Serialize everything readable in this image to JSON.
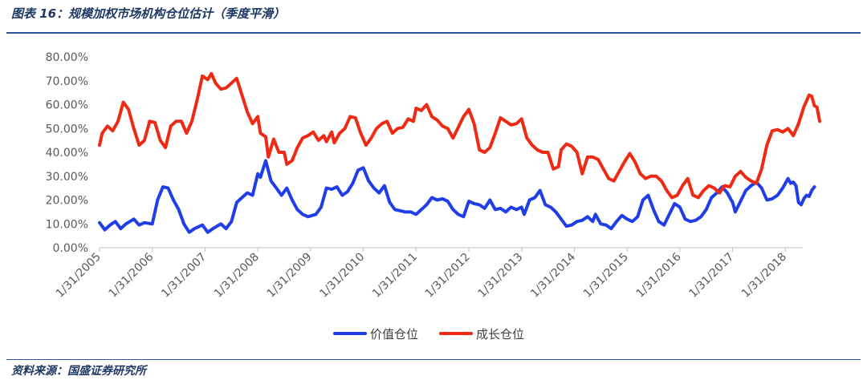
{
  "figure": {
    "title": "图表 16：规模加权市场机构仓位估计（季度平滑）",
    "source": "资料来源：国盛证券研究所"
  },
  "chart_data": {
    "type": "line",
    "ylim": [
      0,
      80
    ],
    "y_ticks": [
      "80.00%",
      "70.00%",
      "60.00%",
      "50.00%",
      "40.00%",
      "30.00%",
      "20.00%",
      "10.00%",
      "0.00%"
    ],
    "x_ticks": [
      "1/31/2005",
      "1/31/2006",
      "1/31/2007",
      "1/31/2008",
      "1/31/2009",
      "1/31/2010",
      "1/31/2011",
      "1/31/2012",
      "1/31/2013",
      "1/31/2014",
      "1/31/2015",
      "1/31/2016",
      "1/31/2017",
      "1/31/2018"
    ],
    "x_range": [
      2005.0,
      2018.33
    ],
    "legend_position": "bottom-center",
    "grid": false,
    "series": [
      {
        "name": "价值仓位",
        "color": "#1f3ee8",
        "points": [
          [
            2005.0,
            10.5
          ],
          [
            2005.1,
            7.5
          ],
          [
            2005.2,
            9.5
          ],
          [
            2005.3,
            11.0
          ],
          [
            2005.4,
            8.0
          ],
          [
            2005.5,
            10.0
          ],
          [
            2005.65,
            12.0
          ],
          [
            2005.75,
            9.5
          ],
          [
            2005.85,
            10.5
          ],
          [
            2006.0,
            10.0
          ],
          [
            2006.1,
            20.0
          ],
          [
            2006.2,
            25.5
          ],
          [
            2006.3,
            25.0
          ],
          [
            2006.4,
            20.0
          ],
          [
            2006.5,
            16.0
          ],
          [
            2006.6,
            10.0
          ],
          [
            2006.7,
            6.5
          ],
          [
            2006.8,
            8.0
          ],
          [
            2006.95,
            9.5
          ],
          [
            2007.05,
            6.5
          ],
          [
            2007.15,
            8.0
          ],
          [
            2007.3,
            10.0
          ],
          [
            2007.4,
            8.0
          ],
          [
            2007.5,
            11.0
          ],
          [
            2007.6,
            19.0
          ],
          [
            2007.7,
            21.0
          ],
          [
            2007.8,
            23.0
          ],
          [
            2007.9,
            22.0
          ],
          [
            2008.0,
            31.0
          ],
          [
            2008.05,
            29.5
          ],
          [
            2008.15,
            36.5
          ],
          [
            2008.25,
            28.0
          ],
          [
            2008.35,
            25.0
          ],
          [
            2008.45,
            22.0
          ],
          [
            2008.55,
            25.0
          ],
          [
            2008.65,
            20.0
          ],
          [
            2008.75,
            16.0
          ],
          [
            2008.85,
            14.0
          ],
          [
            2008.95,
            13.0
          ],
          [
            2009.1,
            14.0
          ],
          [
            2009.2,
            17.0
          ],
          [
            2009.3,
            25.0
          ],
          [
            2009.4,
            24.5
          ],
          [
            2009.5,
            25.5
          ],
          [
            2009.6,
            22.0
          ],
          [
            2009.7,
            23.5
          ],
          [
            2009.8,
            27.0
          ],
          [
            2009.9,
            32.5
          ],
          [
            2010.0,
            33.5
          ],
          [
            2010.1,
            28.0
          ],
          [
            2010.2,
            25.0
          ],
          [
            2010.3,
            23.0
          ],
          [
            2010.4,
            26.0
          ],
          [
            2010.5,
            19.0
          ],
          [
            2010.6,
            16.0
          ],
          [
            2010.7,
            15.5
          ],
          [
            2010.8,
            15.0
          ],
          [
            2010.9,
            15.0
          ],
          [
            2011.0,
            14.0
          ],
          [
            2011.1,
            16.0
          ],
          [
            2011.2,
            18.0
          ],
          [
            2011.3,
            21.0
          ],
          [
            2011.4,
            20.0
          ],
          [
            2011.5,
            20.5
          ],
          [
            2011.6,
            19.5
          ],
          [
            2011.7,
            16.0
          ],
          [
            2011.8,
            14.0
          ],
          [
            2011.9,
            13.0
          ],
          [
            2012.0,
            19.5
          ],
          [
            2012.1,
            18.5
          ],
          [
            2012.2,
            18.0
          ],
          [
            2012.3,
            16.5
          ],
          [
            2012.4,
            20.0
          ],
          [
            2012.5,
            16.0
          ],
          [
            2012.6,
            16.5
          ],
          [
            2012.7,
            15.0
          ],
          [
            2012.8,
            17.0
          ],
          [
            2012.9,
            16.0
          ],
          [
            2013.0,
            17.0
          ],
          [
            2013.05,
            14.0
          ],
          [
            2013.15,
            20.0
          ],
          [
            2013.25,
            21.0
          ],
          [
            2013.35,
            24.0
          ],
          [
            2013.45,
            18.0
          ],
          [
            2013.55,
            17.0
          ],
          [
            2013.65,
            15.0
          ],
          [
            2013.75,
            12.0
          ],
          [
            2013.85,
            9.0
          ],
          [
            2013.95,
            9.5
          ],
          [
            2014.05,
            11.0
          ],
          [
            2014.15,
            11.5
          ],
          [
            2014.25,
            13.0
          ],
          [
            2014.35,
            11.0
          ],
          [
            2014.4,
            14.0
          ],
          [
            2014.5,
            10.0
          ],
          [
            2014.6,
            9.5
          ],
          [
            2014.7,
            8.0
          ],
          [
            2014.8,
            11.0
          ],
          [
            2014.9,
            13.5
          ],
          [
            2015.0,
            12.0
          ],
          [
            2015.1,
            11.0
          ],
          [
            2015.2,
            13.0
          ],
          [
            2015.3,
            20.0
          ],
          [
            2015.4,
            22.0
          ],
          [
            2015.5,
            16.0
          ],
          [
            2015.6,
            11.0
          ],
          [
            2015.7,
            9.5
          ],
          [
            2015.8,
            14.0
          ],
          [
            2015.9,
            18.5
          ],
          [
            2016.0,
            17.0
          ],
          [
            2016.1,
            12.0
          ],
          [
            2016.2,
            11.0
          ],
          [
            2016.3,
            11.5
          ],
          [
            2016.4,
            13.0
          ],
          [
            2016.5,
            16.0
          ],
          [
            2016.6,
            21.0
          ],
          [
            2016.7,
            23.0
          ],
          [
            2016.8,
            25.5
          ],
          [
            2016.9,
            23.0
          ],
          [
            2017.0,
            19.0
          ],
          [
            2017.05,
            15.0
          ],
          [
            2017.15,
            19.5
          ],
          [
            2017.25,
            24.0
          ],
          [
            2017.35,
            26.0
          ],
          [
            2017.45,
            27.5
          ],
          [
            2017.55,
            25.0
          ],
          [
            2017.65,
            20.0
          ],
          [
            2017.75,
            20.5
          ],
          [
            2017.85,
            22.0
          ],
          [
            2017.95,
            25.0
          ],
          [
            2018.05,
            29.0
          ],
          [
            2018.1,
            27.0
          ],
          [
            2018.15,
            27.5
          ],
          [
            2018.2,
            26.0
          ],
          [
            2018.25,
            19.0
          ],
          [
            2018.3,
            18.0
          ],
          [
            2018.35,
            20.5
          ],
          [
            2018.4,
            22.0
          ],
          [
            2018.45,
            21.5
          ],
          [
            2018.5,
            24.0
          ],
          [
            2018.55,
            25.5
          ]
        ]
      },
      {
        "name": "成长仓位",
        "color": "#ef2a14",
        "points": [
          [
            2005.0,
            43.0
          ],
          [
            2005.05,
            48.0
          ],
          [
            2005.15,
            51.0
          ],
          [
            2005.25,
            49.0
          ],
          [
            2005.35,
            53.0
          ],
          [
            2005.45,
            61.0
          ],
          [
            2005.55,
            58.0
          ],
          [
            2005.65,
            50.0
          ],
          [
            2005.75,
            43.0
          ],
          [
            2005.85,
            45.0
          ],
          [
            2005.95,
            53.0
          ],
          [
            2006.05,
            52.5
          ],
          [
            2006.15,
            45.0
          ],
          [
            2006.25,
            42.0
          ],
          [
            2006.35,
            51.0
          ],
          [
            2006.45,
            53.0
          ],
          [
            2006.55,
            53.0
          ],
          [
            2006.65,
            48.0
          ],
          [
            2006.75,
            53.0
          ],
          [
            2006.85,
            62.0
          ],
          [
            2006.95,
            72.0
          ],
          [
            2007.05,
            70.5
          ],
          [
            2007.12,
            73.0
          ],
          [
            2007.2,
            69.0
          ],
          [
            2007.3,
            66.5
          ],
          [
            2007.4,
            67.0
          ],
          [
            2007.5,
            69.0
          ],
          [
            2007.6,
            71.0
          ],
          [
            2007.7,
            64.0
          ],
          [
            2007.8,
            57.0
          ],
          [
            2007.9,
            52.0
          ],
          [
            2008.0,
            55.0
          ],
          [
            2008.05,
            48.0
          ],
          [
            2008.15,
            46.5
          ],
          [
            2008.2,
            38.0
          ],
          [
            2008.3,
            45.5
          ],
          [
            2008.4,
            40.0
          ],
          [
            2008.5,
            40.0
          ],
          [
            2008.55,
            35.0
          ],
          [
            2008.65,
            36.5
          ],
          [
            2008.75,
            42.0
          ],
          [
            2008.85,
            46.0
          ],
          [
            2008.95,
            47.0
          ],
          [
            2009.05,
            48.5
          ],
          [
            2009.15,
            45.0
          ],
          [
            2009.25,
            47.0
          ],
          [
            2009.3,
            44.5
          ],
          [
            2009.4,
            48.5
          ],
          [
            2009.45,
            44.0
          ],
          [
            2009.55,
            48.0
          ],
          [
            2009.65,
            50.0
          ],
          [
            2009.75,
            55.0
          ],
          [
            2009.85,
            54.5
          ],
          [
            2009.95,
            48.0
          ],
          [
            2010.05,
            43.0
          ],
          [
            2010.15,
            46.0
          ],
          [
            2010.25,
            50.0
          ],
          [
            2010.35,
            52.0
          ],
          [
            2010.45,
            53.0
          ],
          [
            2010.55,
            48.0
          ],
          [
            2010.65,
            50.0
          ],
          [
            2010.75,
            50.5
          ],
          [
            2010.85,
            54.0
          ],
          [
            2010.95,
            53.0
          ],
          [
            2011.0,
            58.5
          ],
          [
            2011.1,
            57.5
          ],
          [
            2011.2,
            60.0
          ],
          [
            2011.3,
            55.0
          ],
          [
            2011.4,
            53.5
          ],
          [
            2011.5,
            51.0
          ],
          [
            2011.6,
            50.0
          ],
          [
            2011.7,
            46.0
          ],
          [
            2011.8,
            50.5
          ],
          [
            2011.9,
            55.0
          ],
          [
            2012.0,
            58.0
          ],
          [
            2012.1,
            52.0
          ],
          [
            2012.2,
            41.0
          ],
          [
            2012.3,
            40.0
          ],
          [
            2012.4,
            42.0
          ],
          [
            2012.5,
            48.0
          ],
          [
            2012.6,
            54.5
          ],
          [
            2012.7,
            53.0
          ],
          [
            2012.8,
            51.5
          ],
          [
            2012.9,
            52.0
          ],
          [
            2013.0,
            54.0
          ],
          [
            2013.1,
            46.0
          ],
          [
            2013.2,
            43.0
          ],
          [
            2013.3,
            41.0
          ],
          [
            2013.4,
            40.0
          ],
          [
            2013.5,
            40.0
          ],
          [
            2013.6,
            33.0
          ],
          [
            2013.7,
            34.0
          ],
          [
            2013.75,
            41.0
          ],
          [
            2013.85,
            43.5
          ],
          [
            2013.95,
            42.5
          ],
          [
            2014.05,
            40.0
          ],
          [
            2014.15,
            31.0
          ],
          [
            2014.25,
            38.0
          ],
          [
            2014.35,
            38.0
          ],
          [
            2014.45,
            37.0
          ],
          [
            2014.55,
            33.0
          ],
          [
            2014.65,
            29.0
          ],
          [
            2014.75,
            28.0
          ],
          [
            2014.85,
            32.0
          ],
          [
            2014.95,
            36.0
          ],
          [
            2015.05,
            39.5
          ],
          [
            2015.15,
            36.0
          ],
          [
            2015.25,
            31.0
          ],
          [
            2015.35,
            29.0
          ],
          [
            2015.45,
            30.0
          ],
          [
            2015.55,
            30.0
          ],
          [
            2015.65,
            28.0
          ],
          [
            2015.75,
            24.0
          ],
          [
            2015.85,
            21.0
          ],
          [
            2015.95,
            22.0
          ],
          [
            2016.05,
            26.0
          ],
          [
            2016.15,
            29.0
          ],
          [
            2016.25,
            22.0
          ],
          [
            2016.35,
            21.0
          ],
          [
            2016.45,
            24.0
          ],
          [
            2016.55,
            26.0
          ],
          [
            2016.65,
            25.0
          ],
          [
            2016.75,
            23.0
          ],
          [
            2016.85,
            26.0
          ],
          [
            2016.95,
            25.5
          ],
          [
            2017.05,
            30.0
          ],
          [
            2017.15,
            32.0
          ],
          [
            2017.25,
            29.5
          ],
          [
            2017.35,
            28.0
          ],
          [
            2017.45,
            27.0
          ],
          [
            2017.55,
            33.0
          ],
          [
            2017.65,
            43.0
          ],
          [
            2017.75,
            49.0
          ],
          [
            2017.85,
            49.5
          ],
          [
            2017.95,
            48.5
          ],
          [
            2018.05,
            50.0
          ],
          [
            2018.15,
            47.0
          ],
          [
            2018.25,
            52.0
          ],
          [
            2018.35,
            59.0
          ],
          [
            2018.45,
            64.0
          ],
          [
            2018.5,
            63.5
          ],
          [
            2018.55,
            59.5
          ],
          [
            2018.6,
            59.0
          ],
          [
            2018.65,
            53.0
          ]
        ]
      }
    ]
  }
}
